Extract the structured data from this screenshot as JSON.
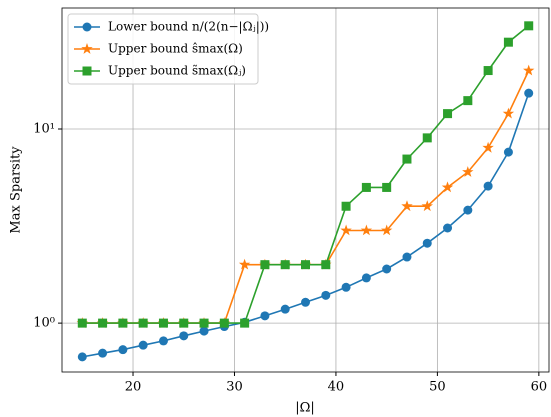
{
  "chart_data": {
    "type": "line",
    "xlabel": "|Ω|",
    "ylabel": "Max Sparsity",
    "x": [
      15,
      17,
      19,
      21,
      23,
      25,
      27,
      29,
      31,
      33,
      35,
      37,
      39,
      41,
      43,
      45,
      47,
      49,
      51,
      53,
      55,
      57,
      59
    ],
    "series": [
      {
        "name": "Lower bound n/(2(n−|Ωⱼ|))",
        "color": "#1f77b4",
        "marker": "circle",
        "values": [
          0.67,
          0.7,
          0.73,
          0.77,
          0.81,
          0.86,
          0.91,
          0.96,
          1.01,
          1.09,
          1.18,
          1.28,
          1.39,
          1.53,
          1.71,
          1.9,
          2.19,
          2.58,
          3.09,
          3.82,
          5.08,
          7.6,
          15.3
        ]
      },
      {
        "name": "Upper bound ŝmax(Ω)",
        "color": "#ff7f0e",
        "marker": "star",
        "values": [
          1,
          1,
          1,
          1,
          1,
          1,
          1,
          1,
          2,
          2,
          2,
          2,
          2,
          3,
          3,
          3,
          4,
          4,
          5,
          6,
          8,
          12,
          20
        ]
      },
      {
        "name": "Upper bound s̃max(Ωⱼ)",
        "color": "#2ca02c",
        "marker": "square",
        "values": [
          1,
          1,
          1,
          1,
          1,
          1,
          1,
          1,
          1,
          2,
          2,
          2,
          2,
          4,
          5,
          5,
          7,
          9,
          12,
          14,
          20,
          28,
          34
        ]
      }
    ],
    "xlim": [
      13,
      61
    ],
    "ylim": [
      0.56,
      42
    ],
    "ylog": true,
    "xticks": [
      20,
      30,
      40,
      50,
      60
    ],
    "yticks": [
      {
        "value": 1,
        "label": "10⁰"
      },
      {
        "value": 10,
        "label": "10¹"
      }
    ],
    "grid": true,
    "legend": "upper left"
  }
}
